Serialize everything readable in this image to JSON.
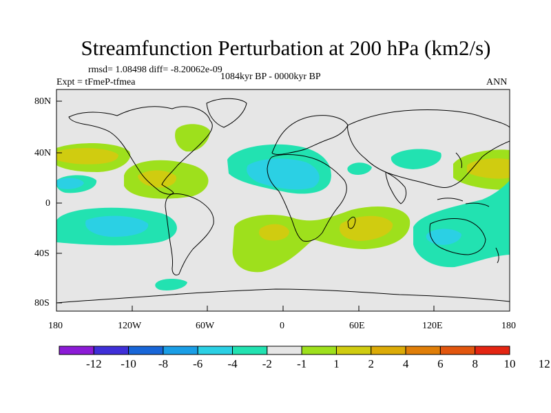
{
  "title": "Streamfunction Perturbation at 200 hPa (km2/s)",
  "stats": "rmsd= 1.08498 diff= -8.20062e-09",
  "experiment": "Expt = tFmeP-tfmea",
  "period": "1084kyr BP - 0000kyr BP",
  "season": "ANN",
  "axes": {
    "lat_labels": [
      "80N",
      "40N",
      "0",
      "40S",
      "80S"
    ],
    "lon_labels": [
      "180",
      "120W",
      "60W",
      "0",
      "60E",
      "120E",
      "180"
    ]
  },
  "colorbar": {
    "colors": [
      "#8c1bd6",
      "#3f2fd8",
      "#1866d8",
      "#1a9ee6",
      "#2bd0e4",
      "#22e2b1",
      "#e6e6e6",
      "#9ee01c",
      "#d0cc10",
      "#dcab07",
      "#e07e08",
      "#e2560e",
      "#e42512"
    ],
    "labels": [
      "-12",
      "-10",
      "-8",
      "-6",
      "-4",
      "-2",
      "-1",
      "1",
      "2",
      "4",
      "6",
      "8",
      "10",
      "12"
    ]
  },
  "chart_data": {
    "type": "contour-map",
    "title": "Streamfunction Perturbation at 200 hPa (km2/s)",
    "variable": "streamfunction perturbation",
    "units": "km2/s",
    "level_hPa": 200,
    "contour_levels": [
      -12,
      -10,
      -8,
      -6,
      -4,
      -2,
      -1,
      1,
      2,
      4,
      6,
      8,
      10,
      12
    ],
    "rmsd": 1.08498,
    "diff": -8.20062e-09,
    "xlim": [
      -180,
      180
    ],
    "ylim": [
      -90,
      90
    ],
    "features": [
      {
        "region": "Central North Pacific",
        "sign": "positive",
        "approx_max": 4
      },
      {
        "region": "Gulf of Mexico / Caribbean",
        "sign": "positive",
        "approx_max": 4
      },
      {
        "region": "Eastern Canada / Great Lakes",
        "sign": "positive",
        "approx_max": 2
      },
      {
        "region": "Western North Pacific",
        "sign": "positive",
        "approx_max": 4
      },
      {
        "region": "Southern Atlantic to Southern Indian Ocean",
        "sign": "positive",
        "approx_max": 4
      },
      {
        "region": "Central Pacific east of dateline",
        "sign": "negative",
        "approx_min": -4
      },
      {
        "region": "Eastern South Pacific",
        "sign": "negative",
        "approx_min": -6
      },
      {
        "region": "North Atlantic / North Africa",
        "sign": "negative",
        "approx_min": -6
      },
      {
        "region": "Arabian Peninsula",
        "sign": "negative",
        "approx_min": -2
      },
      {
        "region": "Northern Indian Ocean to East Asia",
        "sign": "negative",
        "approx_min": -2
      },
      {
        "region": "Australia / Southwest Pacific",
        "sign": "negative",
        "approx_min": -4
      },
      {
        "region": "South of South America",
        "sign": "negative",
        "approx_min": -2
      }
    ]
  }
}
